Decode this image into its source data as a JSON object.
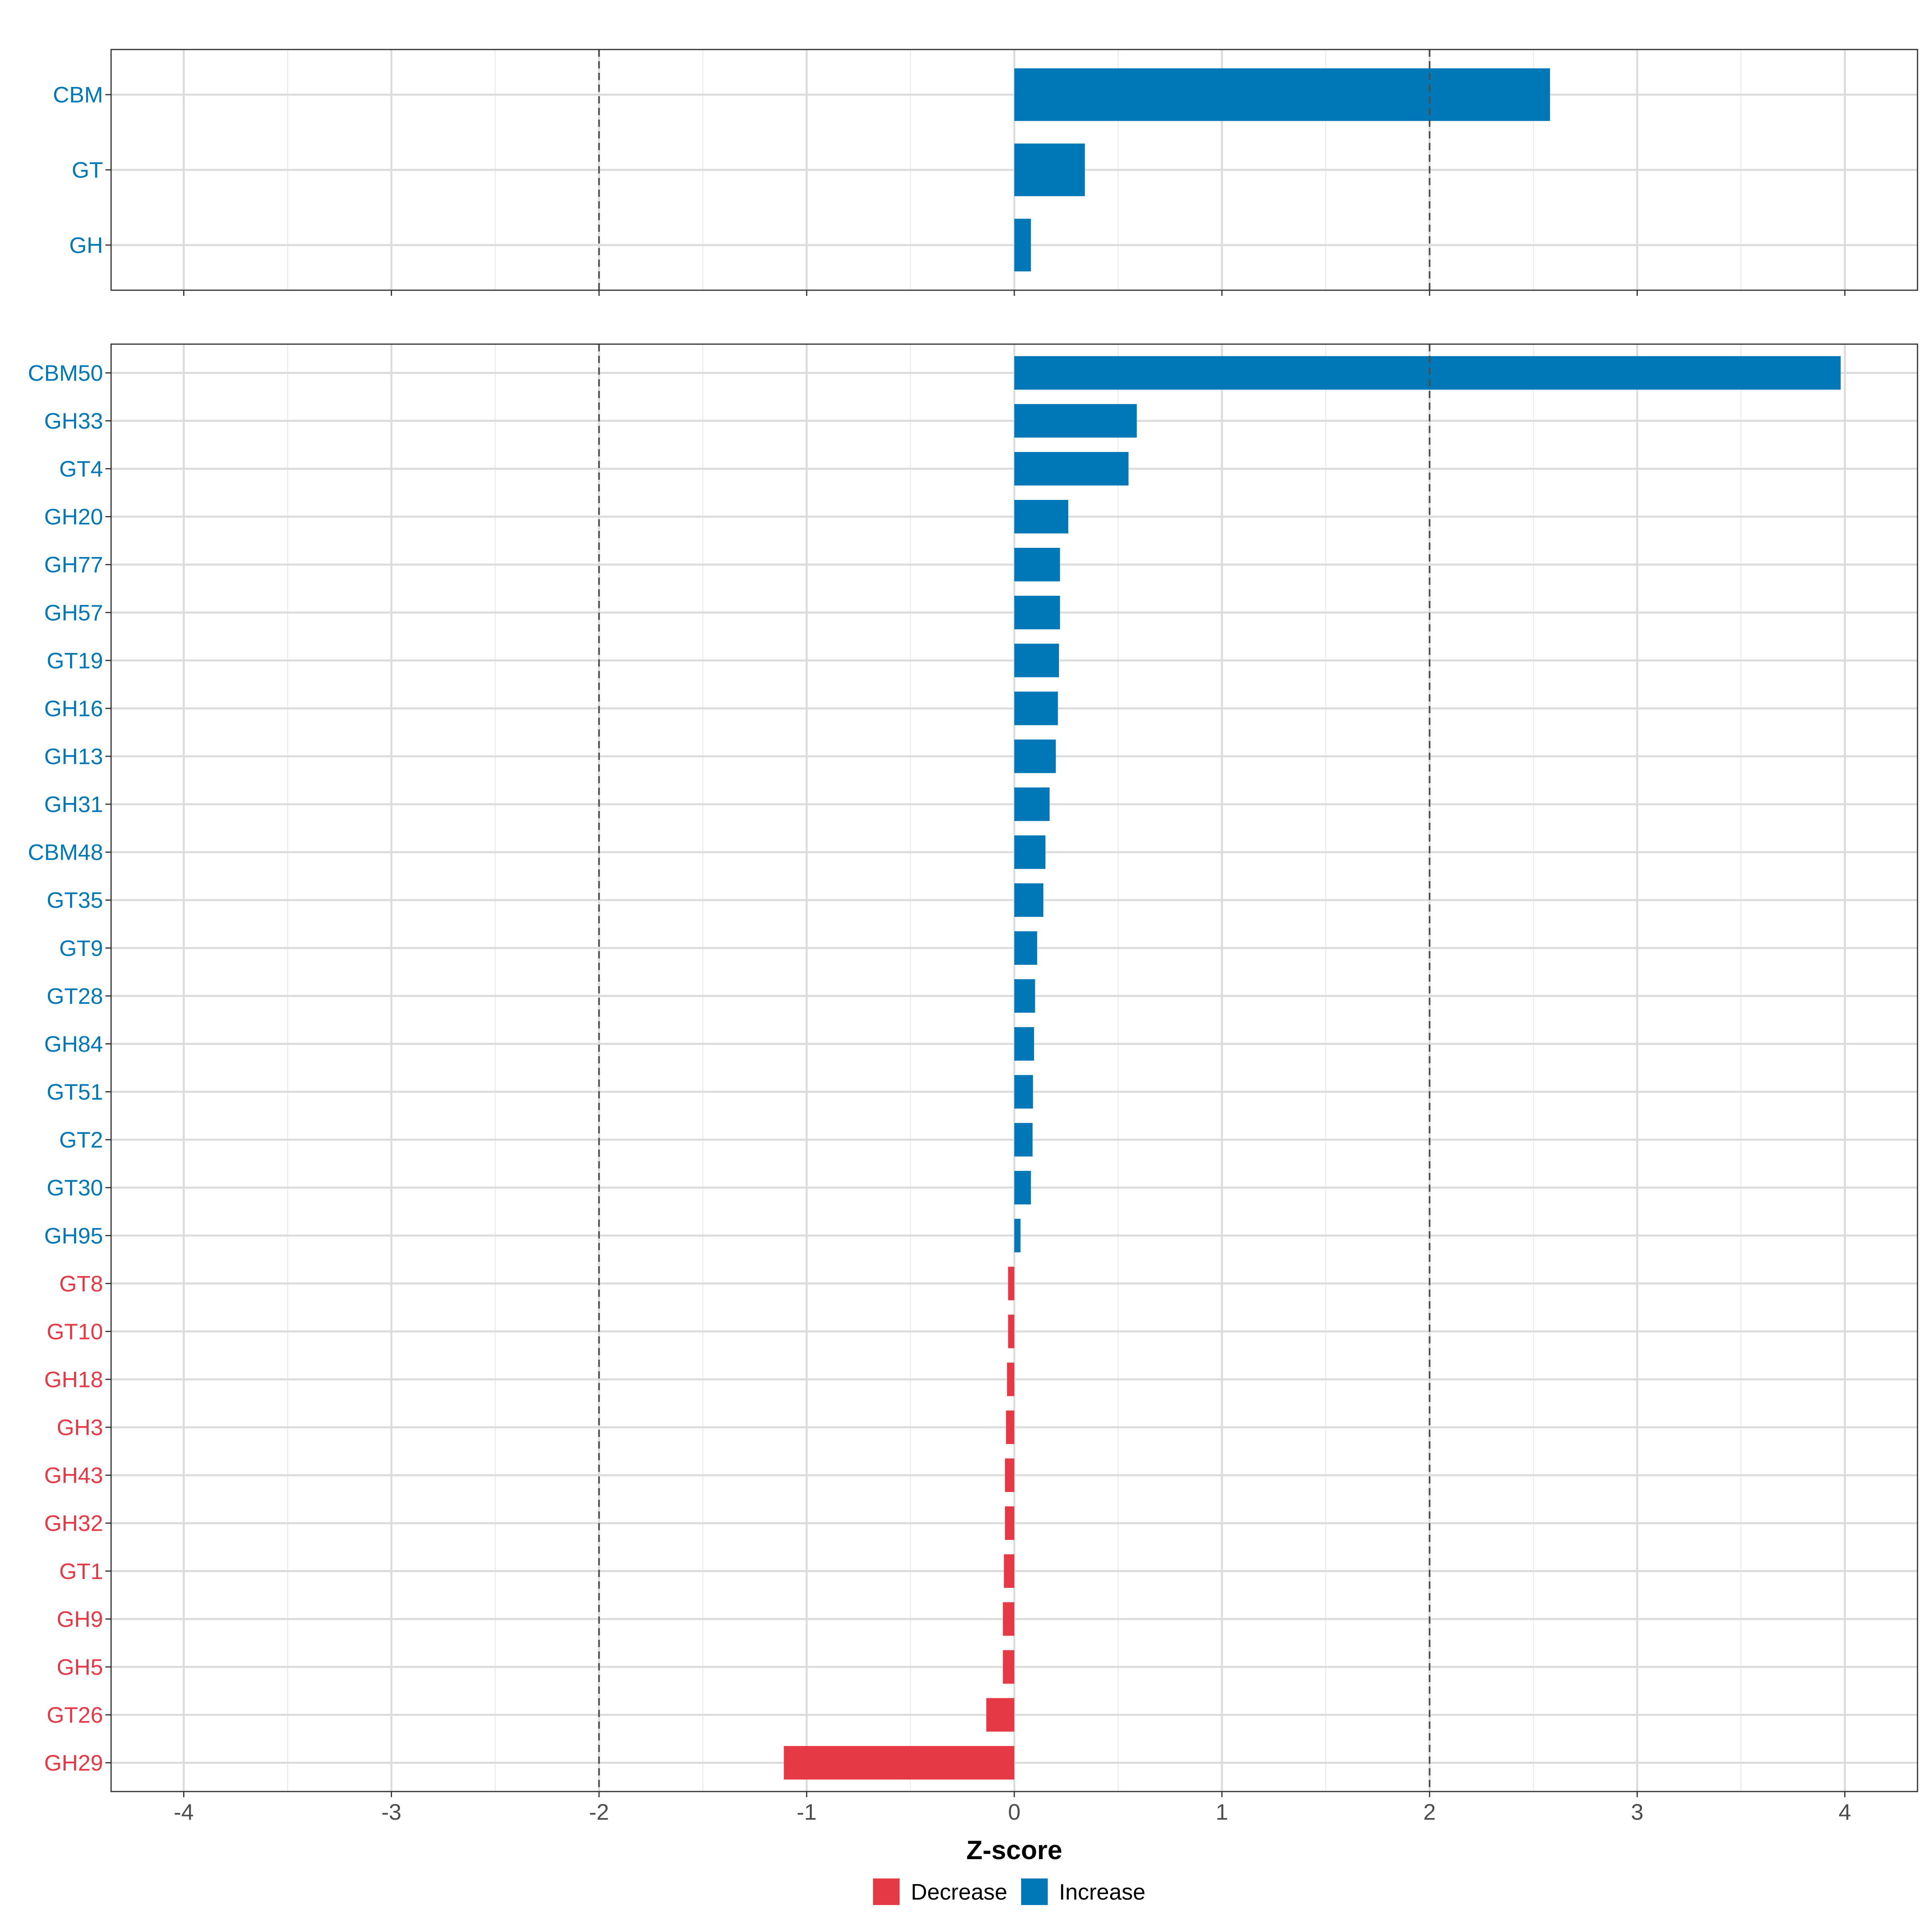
{
  "chart_data": {
    "type": "bar",
    "orientation": "horizontal",
    "xlabel": "Z-score",
    "xlim": [
      -4.35,
      4.35
    ],
    "xticks": [
      -4,
      -3,
      -2,
      -1,
      0,
      1,
      2,
      3,
      4
    ],
    "reference_lines": [
      -2,
      2
    ],
    "grid": true,
    "colors": {
      "Increase": "#0077b6",
      "Decrease": "#e63946"
    },
    "legend": {
      "placement": "bottom",
      "entries": [
        {
          "label": "Decrease",
          "color": "#e63946"
        },
        {
          "label": "Increase",
          "color": "#0077b6"
        }
      ]
    },
    "panels": [
      {
        "categories": [
          "CBM",
          "GT",
          "GH"
        ],
        "values": [
          2.58,
          0.34,
          0.08
        ],
        "direction": [
          "Increase",
          "Increase",
          "Increase"
        ]
      },
      {
        "categories": [
          "CBM50",
          "GH33",
          "GT4",
          "GH20",
          "GH77",
          "GH57",
          "GT19",
          "GH16",
          "GH13",
          "GH31",
          "CBM48",
          "GT35",
          "GT9",
          "GT28",
          "GH84",
          "GT51",
          "GT2",
          "GT30",
          "GH95",
          "GT8",
          "GT10",
          "GH18",
          "GH3",
          "GH43",
          "GH32",
          "GT1",
          "GH9",
          "GH5",
          "GT26",
          "GH29"
        ],
        "values": [
          3.98,
          0.59,
          0.55,
          0.26,
          0.22,
          0.22,
          0.215,
          0.21,
          0.2,
          0.17,
          0.15,
          0.14,
          0.11,
          0.1,
          0.095,
          0.09,
          0.088,
          0.08,
          0.03,
          -0.03,
          -0.03,
          -0.035,
          -0.04,
          -0.045,
          -0.045,
          -0.05,
          -0.055,
          -0.055,
          -0.135,
          -1.11
        ],
        "direction": [
          "Increase",
          "Increase",
          "Increase",
          "Increase",
          "Increase",
          "Increase",
          "Increase",
          "Increase",
          "Increase",
          "Increase",
          "Increase",
          "Increase",
          "Increase",
          "Increase",
          "Increase",
          "Increase",
          "Increase",
          "Increase",
          "Increase",
          "Decrease",
          "Decrease",
          "Decrease",
          "Decrease",
          "Decrease",
          "Decrease",
          "Decrease",
          "Decrease",
          "Decrease",
          "Decrease",
          "Decrease"
        ]
      }
    ]
  }
}
